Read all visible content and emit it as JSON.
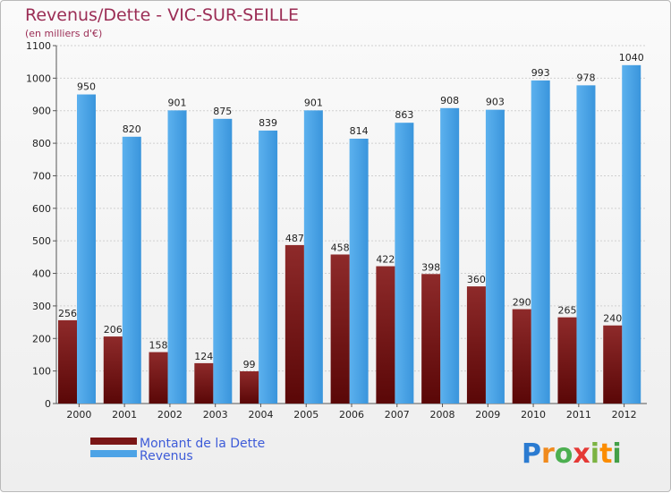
{
  "chart_data": {
    "type": "bar",
    "title": "Revenus/Dette - VIC-SUR-SEILLE",
    "subtitle": "(en milliers d'€)",
    "categories": [
      "2000",
      "2001",
      "2002",
      "2003",
      "2004",
      "2005",
      "2006",
      "2007",
      "2008",
      "2009",
      "2010",
      "2011",
      "2012"
    ],
    "series": [
      {
        "name": "Montant de la Dette",
        "color": "#7a1616",
        "values": [
          256,
          206,
          158,
          124,
          99,
          487,
          458,
          422,
          398,
          360,
          290,
          265,
          240
        ]
      },
      {
        "name": "Revenus",
        "color": "#4da3e6",
        "values": [
          950,
          820,
          901,
          875,
          839,
          901,
          814,
          863,
          908,
          903,
          993,
          978,
          1040
        ]
      }
    ],
    "ylim": [
      0,
      1100
    ],
    "yticks": [
      0,
      100,
      200,
      300,
      400,
      500,
      600,
      700,
      800,
      900,
      1000,
      1100
    ],
    "grid": true,
    "legend_position": "bottom-left"
  },
  "logo": {
    "text": "Proxiti",
    "letters": [
      "P",
      "r",
      "o",
      "x",
      "i",
      "t",
      "i"
    ],
    "letter_colors": [
      "#2b7bd1",
      "#f08a1d",
      "#4caf50",
      "#e53935",
      "#7cb342",
      "#fb8c00",
      "#43a047"
    ]
  }
}
